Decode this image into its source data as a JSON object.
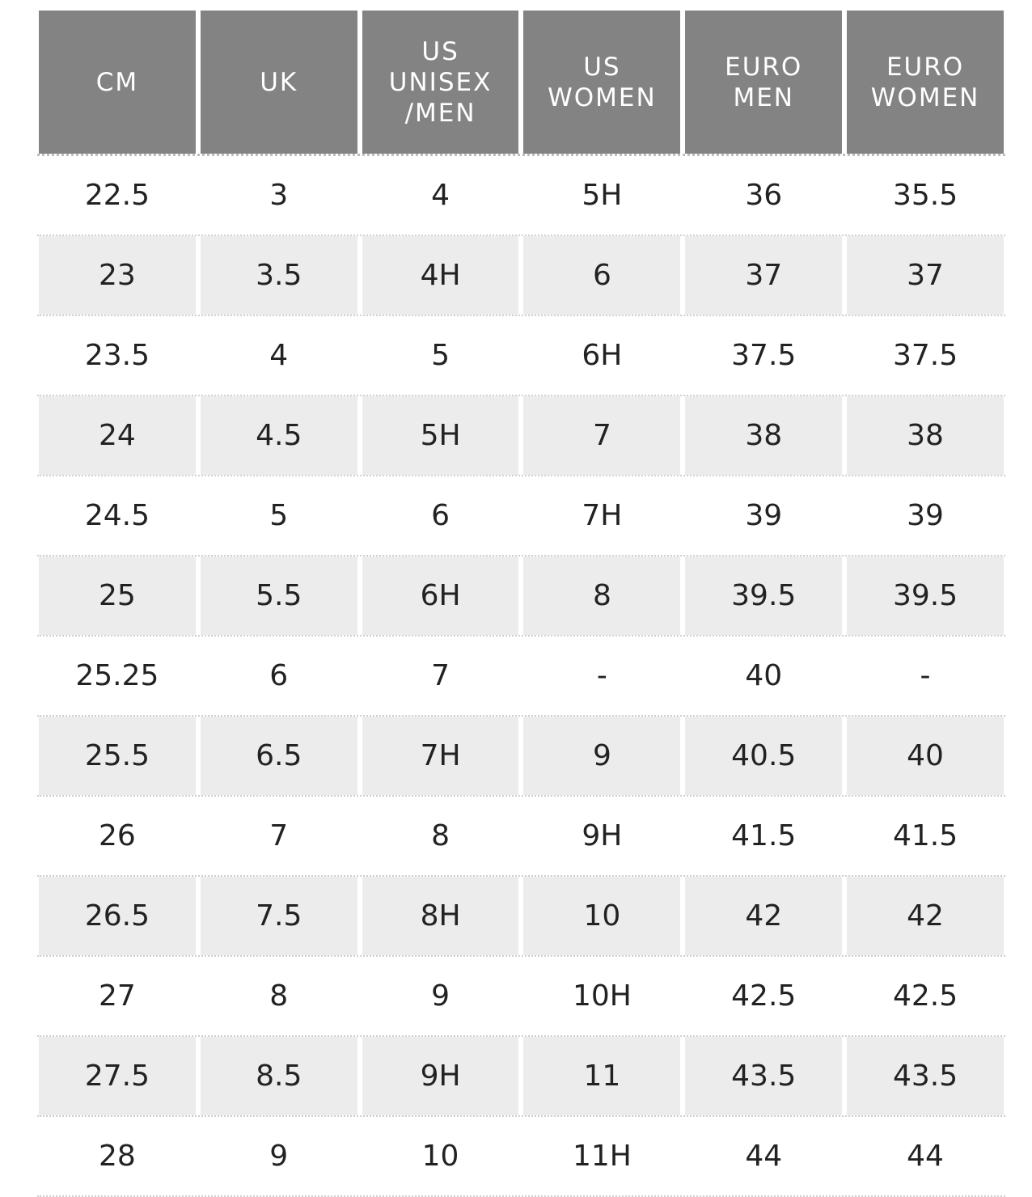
{
  "headers": [
    "CM",
    "UK",
    "US\nUNISEX\n/MEN",
    "US\nWOMEN",
    "EURO\nMEN",
    "EURO\nWOMEN"
  ],
  "rows": [
    [
      "22.5",
      "3",
      "4",
      "5H",
      "36",
      "35.5"
    ],
    [
      "23",
      "3.5",
      "4H",
      "6",
      "37",
      "37"
    ],
    [
      "23.5",
      "4",
      "5",
      "6H",
      "37.5",
      "37.5"
    ],
    [
      "24",
      "4.5",
      "5H",
      "7",
      "38",
      "38"
    ],
    [
      "24.5",
      "5",
      "6",
      "7H",
      "39",
      "39"
    ],
    [
      "25",
      "5.5",
      "6H",
      "8",
      "39.5",
      "39.5"
    ],
    [
      "25.25",
      "6",
      "7",
      "-",
      "40",
      "-"
    ],
    [
      "25.5",
      "6.5",
      "7H",
      "9",
      "40.5",
      "40"
    ],
    [
      "26",
      "7",
      "8",
      "9H",
      "41.5",
      "41.5"
    ],
    [
      "26.5",
      "7.5",
      "8H",
      "10",
      "42",
      "42"
    ],
    [
      "27",
      "8",
      "9",
      "10H",
      "42.5",
      "42.5"
    ],
    [
      "27.5",
      "8.5",
      "9H",
      "11",
      "43.5",
      "43.5"
    ],
    [
      "28",
      "9",
      "10",
      "11H",
      "44",
      "44"
    ]
  ],
  "colors": {
    "header_bg": "#838383",
    "alt_row_bg": "#ececec",
    "text": "#222222"
  }
}
